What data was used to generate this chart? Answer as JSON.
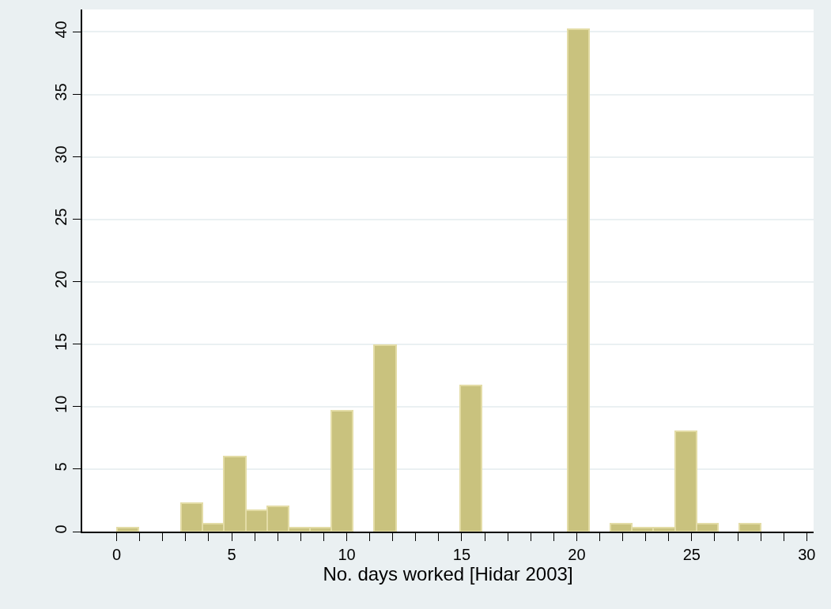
{
  "chart_data": {
    "type": "histogram",
    "xlabel": "No. days worked [Hidar 2003]",
    "bins": [
      0,
      0.933,
      1.867,
      2.8,
      3.733,
      4.667,
      5.6,
      6.533,
      7.467,
      8.4,
      9.333,
      10.267,
      11.2,
      12.133,
      13.067,
      14,
      14.933,
      15.867,
      16.8,
      17.733,
      18.667,
      19.6,
      20.533,
      21.467,
      22.4,
      23.333,
      24.267,
      25.2,
      26.133,
      27.067,
      28
    ],
    "values": [
      0.33,
      0,
      0,
      2.3,
      0.66,
      6,
      1.7,
      2,
      0.33,
      0.33,
      9.7,
      0,
      14.9,
      0,
      0,
      0,
      11.7,
      0,
      0,
      0,
      0,
      40.2,
      0,
      0.66,
      0.33,
      0.33,
      8,
      0.66,
      0,
      0.66
    ],
    "color": "#c9c27e",
    "xlim": [
      -1.5,
      30.3
    ],
    "xticks": [
      0,
      {
        "value": 1,
        "label": null
      },
      {
        "value": 2,
        "label": null
      },
      {
        "value": 3,
        "label": null
      },
      {
        "value": 4,
        "label": null
      },
      5,
      {
        "value": 6,
        "label": null
      },
      {
        "value": 7,
        "label": null
      },
      {
        "value": 8,
        "label": null
      },
      {
        "value": 9,
        "label": null
      },
      10,
      {
        "value": 11,
        "label": null
      },
      {
        "value": 12,
        "label": null
      },
      {
        "value": 13,
        "label": null
      },
      {
        "value": 14,
        "label": null
      },
      15,
      {
        "value": 16,
        "label": null
      },
      {
        "value": 17,
        "label": null
      },
      {
        "value": 18,
        "label": null
      },
      {
        "value": 19,
        "label": null
      },
      20,
      {
        "value": 21,
        "label": null
      },
      {
        "value": 22,
        "label": null
      },
      {
        "value": 23,
        "label": null
      },
      {
        "value": 24,
        "label": null
      },
      25,
      {
        "value": 26,
        "label": null
      },
      {
        "value": 27,
        "label": null
      },
      {
        "value": 28,
        "label": null
      },
      {
        "value": 29,
        "label": null
      },
      30
    ],
    "ylim": [
      0,
      41.8
    ],
    "yticks": [
      0,
      5,
      10,
      15,
      20,
      25,
      30,
      35,
      40
    ],
    "grid": "y"
  }
}
